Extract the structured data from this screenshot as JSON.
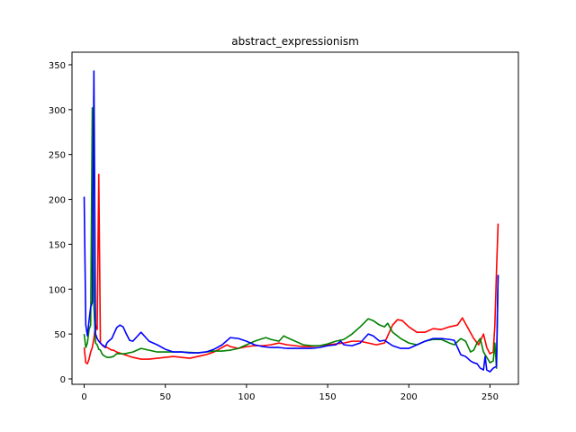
{
  "chart_data": {
    "type": "line",
    "title": "abstract_expressionism",
    "xlabel": "",
    "ylabel": "",
    "xlim": [
      -7.5,
      267.5
    ],
    "ylim": [
      -6,
      364
    ],
    "grid": false,
    "x_ticks": [
      0,
      50,
      100,
      150,
      200,
      250
    ],
    "y_ticks": [
      0,
      50,
      100,
      150,
      200,
      250,
      300,
      350
    ],
    "series": [
      {
        "color": "#ff0000",
        "points": [
          [
            0,
            35
          ],
          [
            1,
            18
          ],
          [
            2,
            17
          ],
          [
            3,
            22
          ],
          [
            4,
            30
          ],
          [
            5,
            35
          ],
          [
            6,
            45
          ],
          [
            7,
            60
          ],
          [
            8,
            55
          ],
          [
            9,
            228
          ],
          [
            10,
            40
          ],
          [
            11,
            38
          ],
          [
            12,
            36
          ],
          [
            13,
            36
          ],
          [
            14,
            35
          ],
          [
            15,
            34
          ],
          [
            16,
            33
          ],
          [
            17,
            32
          ],
          [
            18,
            32
          ],
          [
            20,
            30
          ],
          [
            25,
            27
          ],
          [
            30,
            24
          ],
          [
            35,
            22
          ],
          [
            40,
            22
          ],
          [
            45,
            23
          ],
          [
            50,
            24
          ],
          [
            55,
            25
          ],
          [
            60,
            24
          ],
          [
            65,
            23
          ],
          [
            70,
            25
          ],
          [
            75,
            27
          ],
          [
            80,
            30
          ],
          [
            85,
            35
          ],
          [
            88,
            38
          ],
          [
            90,
            36
          ],
          [
            95,
            34
          ],
          [
            100,
            36
          ],
          [
            105,
            37
          ],
          [
            110,
            37
          ],
          [
            115,
            38
          ],
          [
            120,
            40
          ],
          [
            125,
            38
          ],
          [
            130,
            37
          ],
          [
            135,
            36
          ],
          [
            140,
            36
          ],
          [
            145,
            37
          ],
          [
            150,
            38
          ],
          [
            155,
            39
          ],
          [
            160,
            40
          ],
          [
            165,
            42
          ],
          [
            170,
            42
          ],
          [
            175,
            40
          ],
          [
            180,
            38
          ],
          [
            185,
            40
          ],
          [
            190,
            60
          ],
          [
            193,
            66
          ],
          [
            196,
            65
          ],
          [
            200,
            58
          ],
          [
            205,
            52
          ],
          [
            210,
            52
          ],
          [
            215,
            56
          ],
          [
            220,
            55
          ],
          [
            225,
            58
          ],
          [
            230,
            60
          ],
          [
            233,
            68
          ],
          [
            236,
            58
          ],
          [
            240,
            45
          ],
          [
            243,
            38
          ],
          [
            246,
            50
          ],
          [
            248,
            35
          ],
          [
            250,
            28
          ],
          [
            252,
            30
          ],
          [
            253,
            60
          ],
          [
            254,
            120
          ],
          [
            255,
            173
          ]
        ]
      },
      {
        "color": "#008000",
        "points": [
          [
            0,
            50
          ],
          [
            1,
            35
          ],
          [
            2,
            40
          ],
          [
            3,
            55
          ],
          [
            4,
            60
          ],
          [
            5,
            302
          ],
          [
            6,
            80
          ],
          [
            7,
            40
          ],
          [
            8,
            38
          ],
          [
            9,
            33
          ],
          [
            10,
            32
          ],
          [
            11,
            28
          ],
          [
            12,
            26
          ],
          [
            14,
            24
          ],
          [
            16,
            24
          ],
          [
            18,
            25
          ],
          [
            20,
            28
          ],
          [
            25,
            28
          ],
          [
            30,
            30
          ],
          [
            35,
            34
          ],
          [
            40,
            32
          ],
          [
            45,
            30
          ],
          [
            50,
            30
          ],
          [
            60,
            30
          ],
          [
            70,
            29
          ],
          [
            75,
            30
          ],
          [
            80,
            31
          ],
          [
            85,
            31
          ],
          [
            90,
            32
          ],
          [
            95,
            34
          ],
          [
            100,
            38
          ],
          [
            105,
            42
          ],
          [
            110,
            45
          ],
          [
            112,
            46
          ],
          [
            115,
            44
          ],
          [
            120,
            42
          ],
          [
            123,
            48
          ],
          [
            125,
            46
          ],
          [
            130,
            42
          ],
          [
            135,
            38
          ],
          [
            140,
            37
          ],
          [
            145,
            37
          ],
          [
            150,
            39
          ],
          [
            155,
            42
          ],
          [
            160,
            44
          ],
          [
            165,
            50
          ],
          [
            170,
            58
          ],
          [
            175,
            67
          ],
          [
            178,
            65
          ],
          [
            182,
            60
          ],
          [
            185,
            58
          ],
          [
            187,
            62
          ],
          [
            190,
            52
          ],
          [
            195,
            45
          ],
          [
            200,
            40
          ],
          [
            205,
            38
          ],
          [
            210,
            42
          ],
          [
            215,
            44
          ],
          [
            220,
            44
          ],
          [
            225,
            40
          ],
          [
            228,
            38
          ],
          [
            232,
            45
          ],
          [
            235,
            42
          ],
          [
            238,
            30
          ],
          [
            240,
            32
          ],
          [
            242,
            40
          ],
          [
            244,
            45
          ],
          [
            246,
            30
          ],
          [
            248,
            24
          ],
          [
            250,
            18
          ],
          [
            252,
            20
          ],
          [
            253,
            40
          ],
          [
            254,
            12
          ],
          [
            255,
            115
          ]
        ]
      },
      {
        "color": "#0000ff",
        "points": [
          [
            0,
            203
          ],
          [
            1,
            60
          ],
          [
            2,
            48
          ],
          [
            3,
            65
          ],
          [
            4,
            80
          ],
          [
            5,
            85
          ],
          [
            6,
            343
          ],
          [
            7,
            50
          ],
          [
            8,
            45
          ],
          [
            9,
            42
          ],
          [
            10,
            40
          ],
          [
            11,
            38
          ],
          [
            12,
            37
          ],
          [
            13,
            35
          ],
          [
            14,
            40
          ],
          [
            15,
            42
          ],
          [
            17,
            45
          ],
          [
            20,
            57
          ],
          [
            22,
            60
          ],
          [
            24,
            58
          ],
          [
            26,
            50
          ],
          [
            28,
            43
          ],
          [
            30,
            42
          ],
          [
            33,
            48
          ],
          [
            35,
            52
          ],
          [
            37,
            48
          ],
          [
            40,
            42
          ],
          [
            45,
            38
          ],
          [
            50,
            33
          ],
          [
            55,
            30
          ],
          [
            60,
            30
          ],
          [
            65,
            29
          ],
          [
            70,
            29
          ],
          [
            75,
            30
          ],
          [
            80,
            33
          ],
          [
            85,
            38
          ],
          [
            90,
            46
          ],
          [
            95,
            45
          ],
          [
            100,
            42
          ],
          [
            105,
            38
          ],
          [
            110,
            36
          ],
          [
            115,
            35
          ],
          [
            120,
            35
          ],
          [
            125,
            34
          ],
          [
            130,
            34
          ],
          [
            135,
            34
          ],
          [
            140,
            34
          ],
          [
            145,
            35
          ],
          [
            150,
            37
          ],
          [
            155,
            38
          ],
          [
            158,
            42
          ],
          [
            160,
            38
          ],
          [
            165,
            37
          ],
          [
            170,
            40
          ],
          [
            175,
            50
          ],
          [
            178,
            48
          ],
          [
            182,
            42
          ],
          [
            185,
            43
          ],
          [
            190,
            37
          ],
          [
            195,
            34
          ],
          [
            200,
            34
          ],
          [
            205,
            38
          ],
          [
            210,
            42
          ],
          [
            215,
            45
          ],
          [
            220,
            45
          ],
          [
            225,
            44
          ],
          [
            228,
            43
          ],
          [
            232,
            27
          ],
          [
            235,
            25
          ],
          [
            238,
            20
          ],
          [
            240,
            18
          ],
          [
            242,
            17
          ],
          [
            244,
            12
          ],
          [
            246,
            10
          ],
          [
            247,
            25
          ],
          [
            248,
            10
          ],
          [
            250,
            8
          ],
          [
            252,
            12
          ],
          [
            254,
            14
          ],
          [
            255,
            116
          ]
        ]
      }
    ]
  }
}
